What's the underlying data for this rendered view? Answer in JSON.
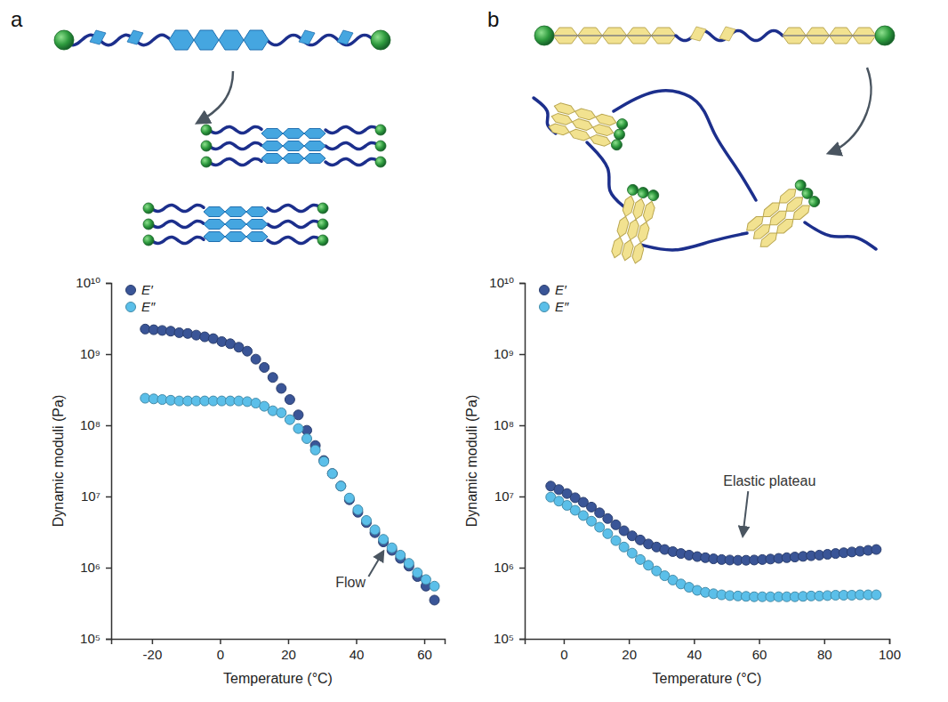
{
  "chart_data": [
    {
      "type": "scatter",
      "panel_label": "a",
      "xlabel": "Temperature (°C)",
      "ylabel": "Dynamic moduli (Pa)",
      "x": [
        -22,
        -19.5,
        -17,
        -14.5,
        -12,
        -9.5,
        -7,
        -4.5,
        -2,
        0.5,
        3,
        5.5,
        8,
        10.5,
        13,
        15.5,
        18,
        20.5,
        23,
        25.5,
        28,
        30.5,
        33,
        35.5,
        38,
        40.5,
        43,
        45.5,
        48,
        50.5,
        53,
        55.5,
        58,
        60.5,
        63
      ],
      "series": [
        {
          "name": "E′",
          "color": "#3a5597",
          "marker": "circle",
          "values": [
            2250000000,
            2200000000,
            2150000000,
            2100000000,
            2000000000,
            1950000000,
            1850000000,
            1750000000,
            1650000000,
            1500000000,
            1400000000,
            1250000000,
            1100000000,
            850000000,
            650000000,
            470000000,
            330000000,
            230000000,
            140000000,
            85000000,
            52000000,
            32000000,
            21000000,
            14000000,
            9000000,
            6000000,
            4300000,
            3100000,
            2300000,
            1750000,
            1350000,
            1050000,
            750000,
            550000,
            350000
          ]
        },
        {
          "name": "E″",
          "color": "#5bbfe9",
          "marker": "circle",
          "values": [
            240000000,
            235000000,
            230000000,
            225000000,
            220000000,
            220000000,
            220000000,
            220000000,
            220000000,
            220000000,
            220000000,
            220000000,
            215000000,
            205000000,
            185000000,
            160000000,
            150000000,
            120000000,
            90000000,
            65000000,
            45000000,
            31000000,
            21000000,
            14000000,
            9500000,
            6500000,
            4600000,
            3400000,
            2500000,
            1900000,
            1500000,
            1150000,
            850000,
            680000,
            550000
          ]
        }
      ],
      "xlim": [
        -32,
        66
      ],
      "xticks": [
        -20,
        0,
        20,
        40,
        60
      ],
      "ylim": [
        100000,
        10000000000
      ],
      "yticks": [
        {
          "value": 100000,
          "label": "10⁵"
        },
        {
          "value": 1000000,
          "label": "10⁶"
        },
        {
          "value": 10000000,
          "label": "10⁷"
        },
        {
          "value": 100000000,
          "label": "10⁸"
        },
        {
          "value": 1000000000,
          "label": "10⁹"
        },
        {
          "value": 10000000000,
          "label": "10¹⁰"
        }
      ],
      "log": "y",
      "legend": "upper left",
      "annotations": [
        {
          "text": "Flow",
          "x": 49,
          "y": 2000000
        }
      ]
    },
    {
      "type": "scatter",
      "panel_label": "b",
      "xlabel": "Temperature (°C)",
      "ylabel": "Dynamic moduli (Pa)",
      "x": [
        -4,
        -1.5,
        1,
        3.5,
        6,
        8.5,
        11,
        13.5,
        16,
        18.5,
        21,
        23.5,
        26,
        28.5,
        31,
        33.5,
        36,
        38.5,
        41,
        43.5,
        46,
        48.5,
        51,
        53.5,
        56,
        58.5,
        61,
        63.5,
        66,
        68.5,
        71,
        73.5,
        76,
        78.5,
        81,
        83.5,
        86,
        88.5,
        91,
        93.5,
        96
      ],
      "series": [
        {
          "name": "E′",
          "color": "#3a5597",
          "marker": "circle",
          "values": [
            14000000,
            12500000,
            11000000,
            9600000,
            8300000,
            7100000,
            5900000,
            4900000,
            4000000,
            3300000,
            2800000,
            2450000,
            2150000,
            1950000,
            1800000,
            1680000,
            1580000,
            1500000,
            1430000,
            1380000,
            1330000,
            1300000,
            1280000,
            1270000,
            1270000,
            1280000,
            1300000,
            1320000,
            1350000,
            1380000,
            1410000,
            1440000,
            1470000,
            1500000,
            1540000,
            1580000,
            1620000,
            1660000,
            1700000,
            1750000,
            1800000
          ]
        },
        {
          "name": "E″",
          "color": "#5bbfe9",
          "marker": "circle",
          "values": [
            9800000,
            8600000,
            7500000,
            6400000,
            5400000,
            4500000,
            3700000,
            3000000,
            2400000,
            1950000,
            1600000,
            1300000,
            1080000,
            900000,
            770000,
            670000,
            590000,
            530000,
            480000,
            450000,
            430000,
            415000,
            405000,
            400000,
            395000,
            390000,
            390000,
            390000,
            390000,
            390000,
            390000,
            395000,
            400000,
            400000,
            405000,
            410000,
            410000,
            410000,
            415000,
            415000,
            415000
          ]
        }
      ],
      "xlim": [
        -12,
        100
      ],
      "xticks": [
        0,
        20,
        40,
        60,
        80,
        100
      ],
      "ylim": [
        100000,
        10000000000
      ],
      "yticks": [
        {
          "value": 100000,
          "label": "10⁵"
        },
        {
          "value": 1000000,
          "label": "10⁶"
        },
        {
          "value": 10000000,
          "label": "10⁷"
        },
        {
          "value": 100000000,
          "label": "10⁸"
        },
        {
          "value": 1000000000,
          "label": "10⁹"
        },
        {
          "value": 10000000000,
          "label": "10¹⁰"
        }
      ],
      "log": "y",
      "legend": "upper left",
      "annotations": [
        {
          "text": "Elastic plateau",
          "x": 55,
          "y": 2500000
        }
      ]
    }
  ]
}
